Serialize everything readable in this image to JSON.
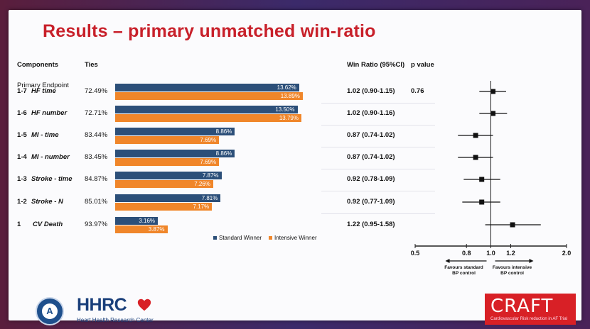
{
  "slide": {
    "title": "Results – primary unmatched win-ratio"
  },
  "headers": {
    "components": "Components",
    "ties": "Ties",
    "win_ratio": "Win Ratio (95%CI)",
    "p_value": "p value"
  },
  "rows": [
    {
      "num": "1-7",
      "name": "HF time",
      "pre": "Primary Endpoint",
      "ties": "72.49%",
      "std_label": "13.62%",
      "int_label": "13.89%",
      "wr": "1.02 (0.90-1.15)",
      "p": "0.76"
    },
    {
      "num": "1-6",
      "name": "HF number",
      "pre": "",
      "ties": "72.71%",
      "std_label": "13.50%",
      "int_label": "13.79%",
      "wr": "1.02 (0.90-1.16)",
      "p": ""
    },
    {
      "num": "1-5",
      "name": "MI - time",
      "pre": "",
      "ties": "83.44%",
      "std_label": "8.86%",
      "int_label": "7.69%",
      "wr": "0.87 (0.74-1.02)",
      "p": ""
    },
    {
      "num": "1-4",
      "name": "MI - number",
      "pre": "",
      "ties": "83.45%",
      "std_label": "8.86%",
      "int_label": "7.69%",
      "wr": "0.87 (0.74-1.02)",
      "p": ""
    },
    {
      "num": "1-3",
      "name": "Stroke - time",
      "pre": "",
      "ties": "84.87%",
      "std_label": "7.87%",
      "int_label": "7.26%",
      "wr": "0.92 (0.78-1.09)",
      "p": ""
    },
    {
      "num": "1-2",
      "name": "Stroke - N",
      "pre": "",
      "ties": "85.01%",
      "std_label": "7.81%",
      "int_label": "7.17%",
      "wr": "0.92 (0.77-1.09)",
      "p": ""
    },
    {
      "num": "1",
      "name": "CV Death",
      "pre": "",
      "ties": "93.97%",
      "std_label": "3.16%",
      "int_label": "3.87%",
      "wr": "1.22 (0.95-1.58)",
      "p": ""
    }
  ],
  "legend": {
    "standard": "Standard Winner",
    "intensive": "Intensive Winner"
  },
  "colors": {
    "standard": "#2c4f79",
    "intensive": "#f0862a",
    "title": "#c8202a"
  },
  "chart_data": [
    {
      "type": "bar",
      "orientation": "horizontal",
      "categories": [
        "1-7 HF time",
        "1-6 HF number",
        "1-5 MI - time",
        "1-4 MI - number",
        "1-3 Stroke - time",
        "1-2 Stroke - N",
        "1 CV Death"
      ],
      "series": [
        {
          "name": "Standard Winner",
          "values": [
            13.62,
            13.5,
            8.86,
            8.86,
            7.87,
            7.81,
            3.16
          ]
        },
        {
          "name": "Intensive Winner",
          "values": [
            13.89,
            13.79,
            7.69,
            7.69,
            7.26,
            7.17,
            3.87
          ]
        }
      ],
      "legend_position": "bottom-right"
    },
    {
      "type": "scatter",
      "subtype": "forest",
      "estimates": [
        1.02,
        1.02,
        0.87,
        0.87,
        0.92,
        0.92,
        1.22
      ],
      "ci_low": [
        0.9,
        0.9,
        0.74,
        0.74,
        0.78,
        0.77,
        0.95
      ],
      "ci_high": [
        1.15,
        1.16,
        1.02,
        1.02,
        1.09,
        1.09,
        1.58
      ],
      "x_scale": "log",
      "xlim": [
        0.5,
        2.0
      ],
      "xticks": [
        "0.5",
        "0.8",
        "1.0",
        "1.2",
        "2.0"
      ],
      "reference_line": 1.0,
      "left_label": "Favours standard BP control",
      "right_label": "Favours intensive BP control"
    }
  ],
  "logos": {
    "hhrc": "HHRC",
    "hhrc_sub": "Heart Health Research Center",
    "craft": "CRAFT",
    "craft_sub": "Cardiovascular Risk reduction in AF Trial"
  }
}
